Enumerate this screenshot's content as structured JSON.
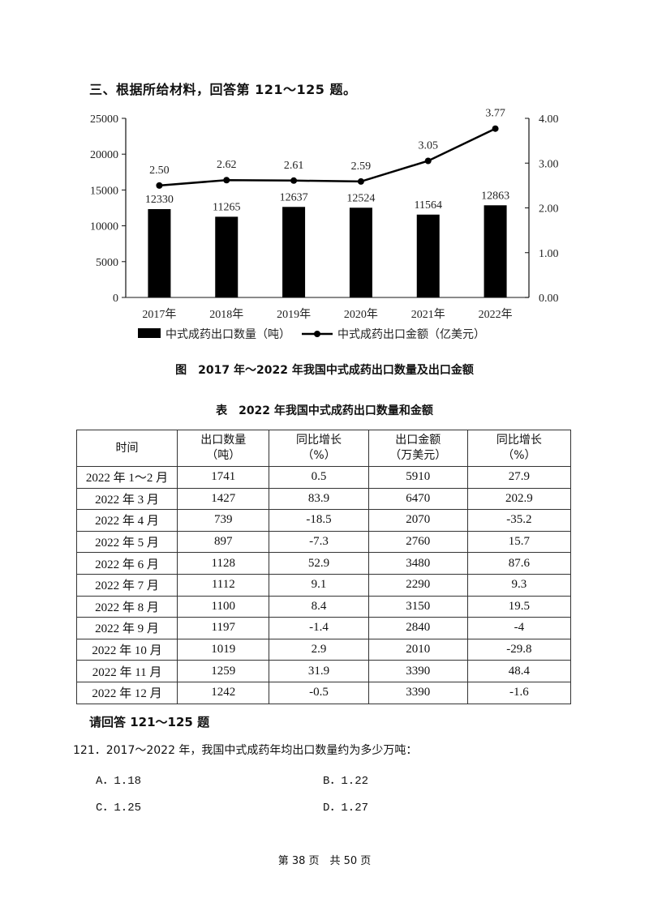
{
  "section_title": "三、根据所给材料，回答第 121～125 题。",
  "chart_data": {
    "type": "bar+line",
    "title": "图　2017 年～2022 年我国中式成药出口数量及出口金额",
    "categories": [
      "2017年",
      "2018年",
      "2019年",
      "2020年",
      "2021年",
      "2022年"
    ],
    "series": [
      {
        "name": "中式成药出口数量（吨）",
        "type": "bar",
        "axis": "left",
        "values": [
          12330,
          11265,
          12637,
          12524,
          11564,
          12863
        ],
        "labels": [
          "12330",
          "11265",
          "12637",
          "12524",
          "11564",
          "12863"
        ],
        "color": "#000000"
      },
      {
        "name": "中式成药出口金额（亿美元）",
        "type": "line",
        "axis": "right",
        "values": [
          2.5,
          2.62,
          2.61,
          2.59,
          3.05,
          3.77
        ],
        "labels": [
          "2.50",
          "2.62",
          "2.61",
          "2.59",
          "3.05",
          "3.77"
        ],
        "color": "#000000"
      }
    ],
    "left_axis": {
      "ylim": [
        0,
        25000
      ],
      "ticks": [
        "0",
        "5000",
        "10000",
        "15000",
        "20000",
        "25000"
      ]
    },
    "right_axis": {
      "ylim": [
        0,
        4
      ],
      "ticks": [
        "0.00",
        "1.00",
        "2.00",
        "3.00",
        "4.00"
      ]
    },
    "grid": false,
    "legend_position": "bottom"
  },
  "table": {
    "caption": "表　2022 年我国中式成药出口数量和金额",
    "headers": [
      {
        "line1": "时间",
        "line2": ""
      },
      {
        "line1": "出口数量",
        "line2": "（吨）"
      },
      {
        "line1": "同比增长",
        "line2": "（%）"
      },
      {
        "line1": "出口金额",
        "line2": "（万美元）"
      },
      {
        "line1": "同比增长",
        "line2": "（%）"
      }
    ],
    "rows": [
      [
        "2022 年 1～2 月",
        "1741",
        "0.5",
        "5910",
        "27.9"
      ],
      [
        "2022 年 3 月",
        "1427",
        "83.9",
        "6470",
        "202.9"
      ],
      [
        "2022 年 4 月",
        "739",
        "-18.5",
        "2070",
        "-35.2"
      ],
      [
        "2022 年 5 月",
        "897",
        "-7.3",
        "2760",
        "15.7"
      ],
      [
        "2022 年 6 月",
        "1128",
        "52.9",
        "3480",
        "87.6"
      ],
      [
        "2022 年 7 月",
        "1112",
        "9.1",
        "2290",
        "9.3"
      ],
      [
        "2022 年 8 月",
        "1100",
        "8.4",
        "3150",
        "19.5"
      ],
      [
        "2022 年 9 月",
        "1197",
        "-1.4",
        "2840",
        "-4"
      ],
      [
        "2022 年 10 月",
        "1019",
        "2.9",
        "2010",
        "-29.8"
      ],
      [
        "2022 年 11 月",
        "1259",
        "31.9",
        "3390",
        "48.4"
      ],
      [
        "2022 年 12 月",
        "1242",
        "-0.5",
        "3390",
        "-1.6"
      ]
    ]
  },
  "questions": {
    "intro": "请回答 121～125 题",
    "items": [
      {
        "stem": "121．2017～2022 年，我国中式成药年均出口数量约为多少万吨：",
        "options": [
          {
            "label": "A．1.18"
          },
          {
            "label": "B．1.22"
          },
          {
            "label": "C．1.25"
          },
          {
            "label": "D．1.27"
          }
        ]
      }
    ]
  },
  "footer": {
    "page_text": "第 38 页　共 50 页"
  }
}
